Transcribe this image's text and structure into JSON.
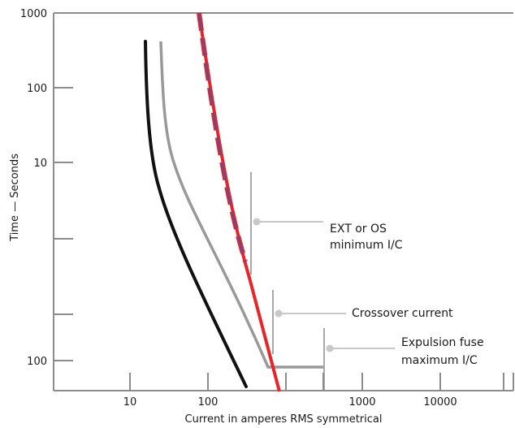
{
  "chart_data": {
    "type": "line",
    "title": "",
    "xlabel": "Current in amperes RMS symmetrical",
    "ylabel": "Time — Seconds",
    "grid": false,
    "colors": {
      "frame": "#8c8c8c",
      "black_curve": "#111111",
      "gray_curve": "#999999",
      "red_curve": "#e8242a",
      "blue_dash": "#4b55a3",
      "annotation_line": "#8c8c8c",
      "annotation_marker": "#c8c8c8"
    },
    "x_ticks": [
      {
        "label": "10"
      },
      {
        "label": "100"
      },
      {
        "label": ""
      },
      {
        "label": ""
      },
      {
        "label": "1000"
      },
      {
        "label": "10000"
      },
      {
        "label": ""
      },
      {
        "label": ""
      }
    ],
    "y_ticks": [
      {
        "label": "1000"
      },
      {
        "label": "100"
      },
      {
        "label": "10"
      },
      {
        "label": ""
      },
      {
        "label": ""
      },
      {
        "label": "100"
      }
    ],
    "annotations": [
      {
        "lines": [
          "EXT or OS",
          "minimum I/C"
        ]
      },
      {
        "lines": [
          "Crossover current"
        ]
      },
      {
        "lines": [
          "Expulsion fuse",
          "maximum I/C"
        ]
      }
    ]
  }
}
